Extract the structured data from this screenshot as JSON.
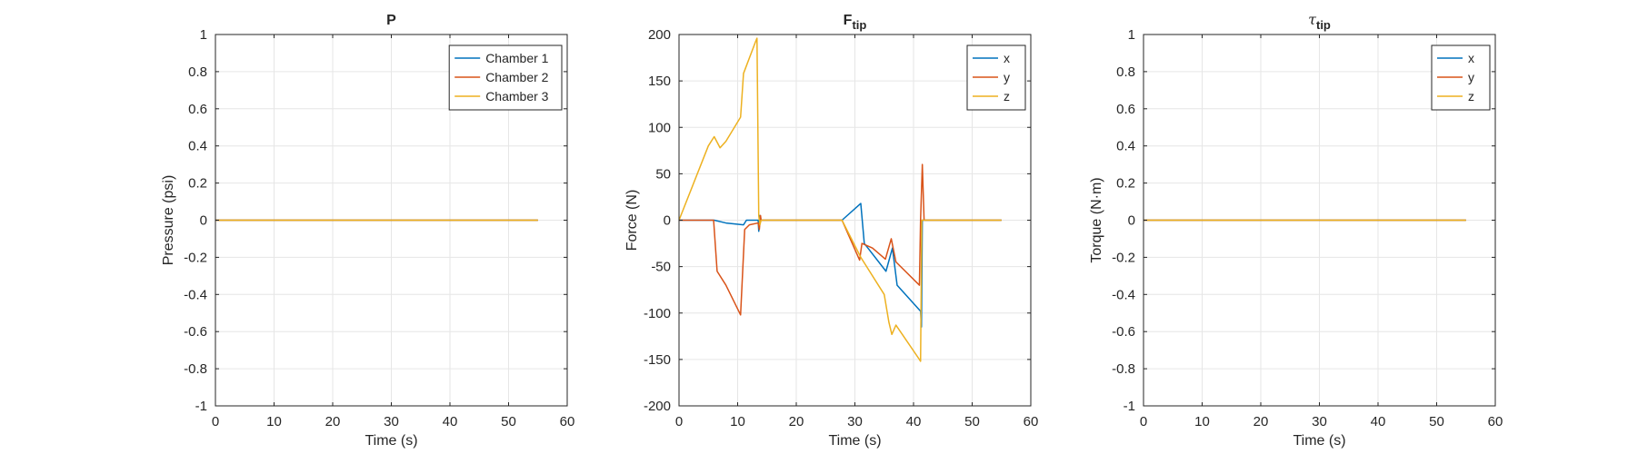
{
  "figure": {
    "background": "#ffffff"
  },
  "chart_data": [
    {
      "type": "line",
      "title": "P",
      "title_parts": [],
      "xlabel": "Time (s)",
      "ylabel": "Pressure (psi)",
      "xlim": [
        0,
        60
      ],
      "ylim": [
        -1,
        1
      ],
      "xticks": [
        0,
        10,
        20,
        30,
        40,
        50,
        60
      ],
      "yticks": [
        -1,
        -0.8,
        -0.6,
        -0.4,
        -0.2,
        0,
        0.2,
        0.4,
        0.6,
        0.8,
        1
      ],
      "grid": true,
      "legend": "top-right",
      "series": [
        {
          "name": "Chamber 1",
          "color": "#0072BD",
          "x": [
            0,
            55
          ],
          "y": [
            0,
            0
          ]
        },
        {
          "name": "Chamber 2",
          "color": "#D95319",
          "x": [
            0,
            55
          ],
          "y": [
            0,
            0
          ]
        },
        {
          "name": "Chamber 3",
          "color": "#EDB120",
          "x": [
            0,
            55
          ],
          "y": [
            0,
            0
          ]
        }
      ]
    },
    {
      "type": "line",
      "title": "F",
      "title_parts": [
        {
          "text": "F",
          "style": "normal"
        },
        {
          "text": "tip",
          "style": "subscript"
        }
      ],
      "xlabel": "Time (s)",
      "ylabel": "Force (N)",
      "xlim": [
        0,
        60
      ],
      "ylim": [
        -200,
        200
      ],
      "xticks": [
        0,
        10,
        20,
        30,
        40,
        50,
        60
      ],
      "yticks": [
        -200,
        -150,
        -100,
        -50,
        0,
        50,
        100,
        150,
        200
      ],
      "grid": true,
      "legend": "top-right",
      "series": [
        {
          "name": "x",
          "color": "#0072BD",
          "x": [
            0,
            6,
            8,
            11,
            11.5,
            13.5,
            13.6,
            13.8,
            14,
            27.8,
            31,
            31.6,
            35.3,
            36.4,
            37.2,
            41.2,
            41.35,
            41.5,
            42,
            55
          ],
          "y": [
            0,
            0,
            -3,
            -5,
            0,
            0,
            -12,
            5,
            0,
            0,
            18,
            -25,
            -55,
            -30,
            -70,
            -98,
            -115,
            0,
            0,
            0
          ]
        },
        {
          "name": "y",
          "color": "#D95319",
          "x": [
            0,
            5.9,
            6.5,
            8,
            10.5,
            11.2,
            12,
            13.5,
            13.7,
            13.9,
            14,
            27.8,
            30.8,
            31.2,
            33,
            35.2,
            36.2,
            37,
            41,
            41.2,
            41.5,
            41.8,
            55
          ],
          "y": [
            0,
            0,
            -55,
            -70,
            -102,
            -10,
            -5,
            -3,
            -10,
            5,
            0,
            0,
            -43,
            -25,
            -30,
            -42,
            -20,
            -45,
            -70,
            0,
            60,
            0,
            0
          ]
        },
        {
          "name": "z",
          "color": "#EDB120",
          "x": [
            0,
            5,
            6,
            7,
            8,
            10.5,
            11,
            13.1,
            13.3,
            13.6,
            13.8,
            14,
            27.8,
            31,
            35,
            35.8,
            36.3,
            37,
            41,
            41.2,
            41.4,
            55
          ],
          "y": [
            0,
            80,
            90,
            78,
            85,
            111,
            158,
            193,
            196,
            5,
            -5,
            0,
            0,
            -40,
            -80,
            -110,
            -123,
            -113,
            -150,
            -152,
            0,
            0
          ]
        }
      ]
    },
    {
      "type": "line",
      "title": "τ",
      "title_parts": [
        {
          "text": "τ",
          "style": "italic"
        },
        {
          "text": "tip",
          "style": "subscript"
        }
      ],
      "xlabel": "Time (s)",
      "ylabel": "Torque (N·m)",
      "xlim": [
        0,
        60
      ],
      "ylim": [
        -1,
        1
      ],
      "xticks": [
        0,
        10,
        20,
        30,
        40,
        50,
        60
      ],
      "yticks": [
        -1,
        -0.8,
        -0.6,
        -0.4,
        -0.2,
        0,
        0.2,
        0.4,
        0.6,
        0.8,
        1
      ],
      "grid": true,
      "legend": "top-right",
      "series": [
        {
          "name": "x",
          "color": "#0072BD",
          "x": [
            0,
            55
          ],
          "y": [
            0,
            0
          ]
        },
        {
          "name": "y",
          "color": "#D95319",
          "x": [
            0,
            55
          ],
          "y": [
            0,
            0
          ]
        },
        {
          "name": "z",
          "color": "#EDB120",
          "x": [
            0,
            55
          ],
          "y": [
            0,
            0
          ]
        }
      ]
    }
  ]
}
